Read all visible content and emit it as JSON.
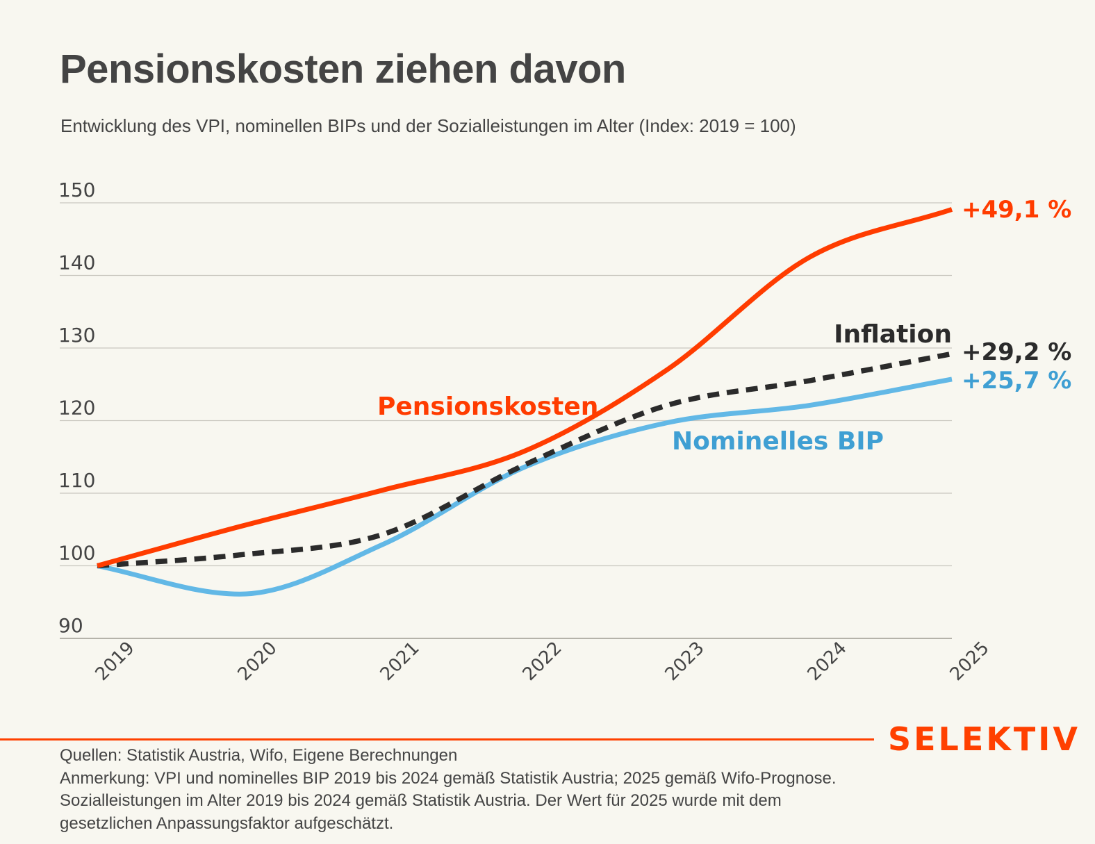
{
  "header": {
    "title": "Pensionskosten ziehen davon",
    "subtitle": "Entwicklung des VPI, nominellen BIPs und der Sozialleistungen im Alter (Index: 2019 = 100)"
  },
  "chart_data": {
    "type": "line",
    "title": "Pensionskosten ziehen davon",
    "subtitle": "Entwicklung des VPI, nominellen BIPs und der Sozialleistungen im Alter (Index: 2019 = 100)",
    "xlabel": "",
    "ylabel": "",
    "x": [
      "2019",
      "2020",
      "2021",
      "2022",
      "2023",
      "2024",
      "2025"
    ],
    "yticks": [
      90,
      100,
      110,
      120,
      130,
      140,
      150
    ],
    "ylim": [
      90,
      150
    ],
    "grid": true,
    "series": [
      {
        "name": "Pensionskosten",
        "key": "pension",
        "color": "#ff3c00",
        "style": "solid",
        "values": [
          100,
          105.4,
          110.4,
          115.8,
          127.0,
          142.5,
          149.1
        ],
        "end_label": "+49,1 %",
        "label_color": "#ff3c00"
      },
      {
        "name": "Inflation",
        "key": "inflation",
        "color": "#2b2b2b",
        "style": "dashed",
        "values": [
          100,
          101.5,
          104.3,
          113.9,
          122.1,
          125.5,
          129.2
        ],
        "end_label": "+29,2 %",
        "label_color": "#2b2b2b"
      },
      {
        "name": "Nominelles BIP",
        "key": "bip",
        "color": "#62b8e6",
        "style": "solid",
        "values": [
          100,
          96.1,
          102.9,
          113.6,
          119.7,
          122.1,
          125.7
        ],
        "end_label": "+25,7 %",
        "label_color": "#3f9fd3"
      }
    ]
  },
  "footer": {
    "brand": "SELEKTIV",
    "brand_color": "#ff4000",
    "notes": [
      "Quellen: Statistik Austria, Wifo, Eigene Berechnungen",
      "Anmerkung: VPI und nominelles BIP 2019 bis 2024 gemäß Statistik Austria; 2025 gemäß Wifo-Prognose.",
      "Sozialleistungen im Alter 2019 bis 2024 gemäß Statistik Austria. Der Wert für 2025 wurde mit dem",
      "gesetzlichen Anpassungsfaktor aufgeschätzt."
    ]
  }
}
